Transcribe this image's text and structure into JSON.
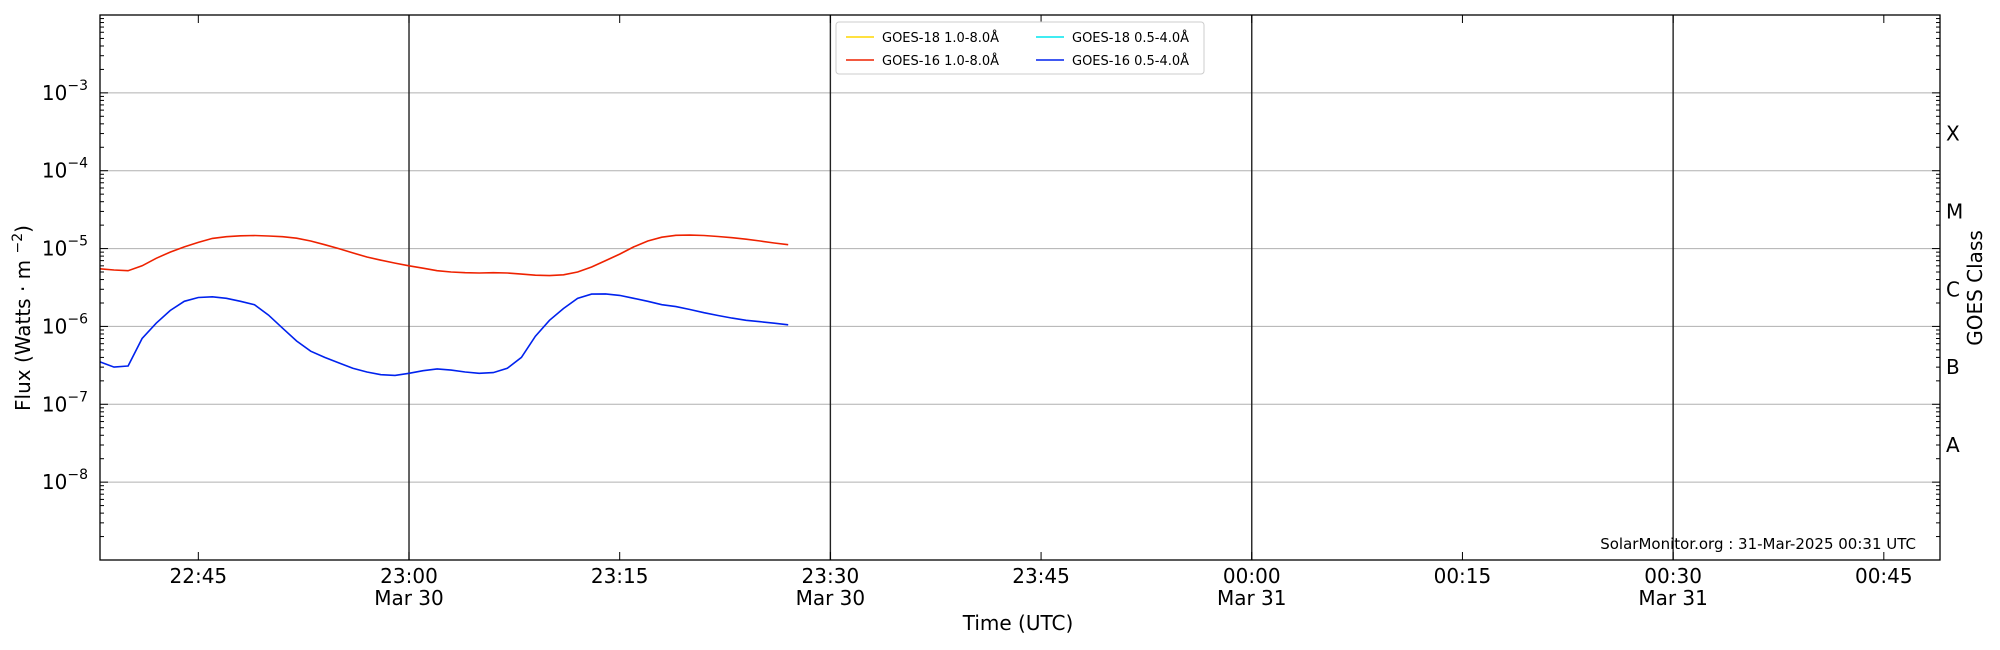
{
  "chart_data": {
    "type": "line",
    "title": "",
    "xlabel": "Time (UTC)",
    "ylabel": "Flux (Watts · m⁻²)",
    "y2label": "GOES Class",
    "y_scale": "log",
    "ylim": [
      1e-09,
      0.01
    ],
    "xlim": [
      "2025-03-30 22:38",
      "2025-03-31 00:49"
    ],
    "y_ticks": [
      {
        "exp": -8,
        "label": "10",
        "sup": "−8"
      },
      {
        "exp": -7,
        "label": "10",
        "sup": "−7"
      },
      {
        "exp": -6,
        "label": "10",
        "sup": "−6"
      },
      {
        "exp": -5,
        "label": "10",
        "sup": "−5"
      },
      {
        "exp": -4,
        "label": "10",
        "sup": "−4"
      },
      {
        "exp": -3,
        "label": "10",
        "sup": "−3"
      }
    ],
    "x_ticks": [
      {
        "time": "2025-03-30 22:45",
        "label": "22:45",
        "sub": ""
      },
      {
        "time": "2025-03-30 23:00",
        "label": "23:00",
        "sub": "Mar 30"
      },
      {
        "time": "2025-03-30 23:15",
        "label": "23:15",
        "sub": ""
      },
      {
        "time": "2025-03-30 23:30",
        "label": "23:30",
        "sub": "Mar 30"
      },
      {
        "time": "2025-03-30 23:45",
        "label": "23:45",
        "sub": ""
      },
      {
        "time": "2025-03-31 00:00",
        "label": "00:00",
        "sub": "Mar 31"
      },
      {
        "time": "2025-03-31 00:15",
        "label": "00:15",
        "sub": ""
      },
      {
        "time": "2025-03-31 00:30",
        "label": "00:30",
        "sub": "Mar 31"
      },
      {
        "time": "2025-03-31 00:45",
        "label": "00:45",
        "sub": ""
      }
    ],
    "vlines": [
      "2025-03-30 23:00",
      "2025-03-30 23:30",
      "2025-03-31 00:00",
      "2025-03-31 00:30"
    ],
    "goes_classes": [
      {
        "label": "A",
        "flux": 3e-08
      },
      {
        "label": "B",
        "flux": 3e-07
      },
      {
        "label": "C",
        "flux": 3e-06
      },
      {
        "label": "M",
        "flux": 3e-05
      },
      {
        "label": "X",
        "flux": 0.0003
      }
    ],
    "grid": "horizontal at each decade",
    "legend": {
      "placement": "top-center",
      "entries": [
        {
          "label": "GOES-18 1.0-8.0Å",
          "color": "#ffd700"
        },
        {
          "label": "GOES-18 0.5-4.0Å",
          "color": "#00e5ee"
        },
        {
          "label": "GOES-16 1.0-8.0Å",
          "color": "#ee2200"
        },
        {
          "label": "GOES-16 0.5-4.0Å",
          "color": "#0022ee"
        }
      ]
    },
    "annotation": "SolarMonitor.org : 31-Mar-2025 00:31 UTC",
    "series": [
      {
        "name": "GOES-16 1.0-8.0Å",
        "color": "#ee2200",
        "x": [
          "2025-03-30 22:38",
          "2025-03-30 22:39",
          "2025-03-30 22:40",
          "2025-03-30 22:41",
          "2025-03-30 22:42",
          "2025-03-30 22:43",
          "2025-03-30 22:44",
          "2025-03-30 22:45",
          "2025-03-30 22:46",
          "2025-03-30 22:47",
          "2025-03-30 22:48",
          "2025-03-30 22:49",
          "2025-03-30 22:50",
          "2025-03-30 22:51",
          "2025-03-30 22:52",
          "2025-03-30 22:53",
          "2025-03-30 22:54",
          "2025-03-30 22:55",
          "2025-03-30 22:56",
          "2025-03-30 22:57",
          "2025-03-30 22:58",
          "2025-03-30 22:59",
          "2025-03-30 23:00",
          "2025-03-30 23:01",
          "2025-03-30 23:02",
          "2025-03-30 23:03",
          "2025-03-30 23:04",
          "2025-03-30 23:05",
          "2025-03-30 23:06",
          "2025-03-30 23:07",
          "2025-03-30 23:08",
          "2025-03-30 23:09",
          "2025-03-30 23:10",
          "2025-03-30 23:11",
          "2025-03-30 23:12",
          "2025-03-30 23:13",
          "2025-03-30 23:14",
          "2025-03-30 23:15",
          "2025-03-30 23:16",
          "2025-03-30 23:17",
          "2025-03-30 23:18",
          "2025-03-30 23:19",
          "2025-03-30 23:20",
          "2025-03-30 23:21",
          "2025-03-30 23:22",
          "2025-03-30 23:23",
          "2025-03-30 23:24",
          "2025-03-30 23:25",
          "2025-03-30 23:26",
          "2025-03-30 23:27"
        ],
        "y": [
          5.5e-06,
          5.3e-06,
          5.2e-06,
          6e-06,
          7.5e-06,
          9e-06,
          1.05e-05,
          1.2e-05,
          1.35e-05,
          1.42e-05,
          1.46e-05,
          1.47e-05,
          1.45e-05,
          1.42e-05,
          1.36e-05,
          1.25e-05,
          1.12e-05,
          1e-05,
          8.8e-06,
          7.8e-06,
          7.1e-06,
          6.5e-06,
          6e-06,
          5.6e-06,
          5.2e-06,
          5e-06,
          4.9e-06,
          4.85e-06,
          4.9e-06,
          4.85e-06,
          4.7e-06,
          4.55e-06,
          4.5e-06,
          4.6e-06,
          5e-06,
          5.8e-06,
          7e-06,
          8.5e-06,
          1.05e-05,
          1.25e-05,
          1.4e-05,
          1.48e-05,
          1.49e-05,
          1.47e-05,
          1.43e-05,
          1.38e-05,
          1.32e-05,
          1.25e-05,
          1.18e-05,
          1.12e-05
        ]
      },
      {
        "name": "GOES-16 0.5-4.0Å",
        "color": "#0022ee",
        "x": [
          "2025-03-30 22:38",
          "2025-03-30 22:39",
          "2025-03-30 22:40",
          "2025-03-30 22:41",
          "2025-03-30 22:42",
          "2025-03-30 22:43",
          "2025-03-30 22:44",
          "2025-03-30 22:45",
          "2025-03-30 22:46",
          "2025-03-30 22:47",
          "2025-03-30 22:48",
          "2025-03-30 22:49",
          "2025-03-30 22:50",
          "2025-03-30 22:51",
          "2025-03-30 22:52",
          "2025-03-30 22:53",
          "2025-03-30 22:54",
          "2025-03-30 22:55",
          "2025-03-30 22:56",
          "2025-03-30 22:57",
          "2025-03-30 22:58",
          "2025-03-30 22:59",
          "2025-03-30 23:00",
          "2025-03-30 23:01",
          "2025-03-30 23:02",
          "2025-03-30 23:03",
          "2025-03-30 23:04",
          "2025-03-30 23:05",
          "2025-03-30 23:06",
          "2025-03-30 23:07",
          "2025-03-30 23:08",
          "2025-03-30 23:09",
          "2025-03-30 23:10",
          "2025-03-30 23:11",
          "2025-03-30 23:12",
          "2025-03-30 23:13",
          "2025-03-30 23:14",
          "2025-03-30 23:15",
          "2025-03-30 23:16",
          "2025-03-30 23:17",
          "2025-03-30 23:18",
          "2025-03-30 23:19",
          "2025-03-30 23:20",
          "2025-03-30 23:21",
          "2025-03-30 23:22",
          "2025-03-30 23:23",
          "2025-03-30 23:24",
          "2025-03-30 23:25",
          "2025-03-30 23:26",
          "2025-03-30 23:27"
        ],
        "y": [
          3.5e-07,
          3e-07,
          3.1e-07,
          7e-07,
          1.1e-06,
          1.6e-06,
          2.1e-06,
          2.35e-06,
          2.4e-06,
          2.3e-06,
          2.1e-06,
          1.9e-06,
          1.4e-06,
          9.5e-07,
          6.5e-07,
          4.8e-07,
          4e-07,
          3.4e-07,
          2.9e-07,
          2.6e-07,
          2.4e-07,
          2.35e-07,
          2.5e-07,
          2.7e-07,
          2.85e-07,
          2.75e-07,
          2.6e-07,
          2.5e-07,
          2.55e-07,
          2.9e-07,
          4e-07,
          7.5e-07,
          1.2e-06,
          1.7e-06,
          2.3e-06,
          2.6e-06,
          2.62e-06,
          2.5e-06,
          2.3e-06,
          2.1e-06,
          1.9e-06,
          1.8e-06,
          1.65e-06,
          1.5e-06,
          1.38e-06,
          1.28e-06,
          1.2e-06,
          1.15e-06,
          1.1e-06,
          1.05e-06
        ]
      }
    ]
  }
}
